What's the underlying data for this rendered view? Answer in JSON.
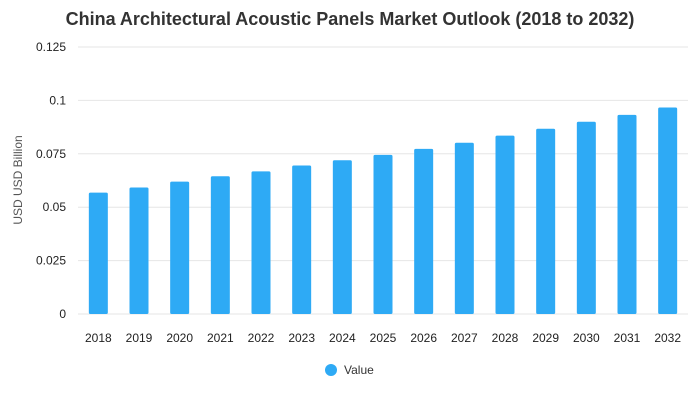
{
  "chart_data": {
    "type": "bar",
    "title": "China Architectural Acoustic Panels Market Outlook (2018 to 2032)",
    "xlabel": "",
    "ylabel": "USD USD Billion",
    "categories": [
      "2018",
      "2019",
      "2020",
      "2021",
      "2022",
      "2023",
      "2024",
      "2025",
      "2026",
      "2027",
      "2028",
      "2029",
      "2030",
      "2031",
      "2032"
    ],
    "series": [
      {
        "name": "Value",
        "color": "#2eaaf5",
        "values": [
          0.0568,
          0.0592,
          0.062,
          0.0645,
          0.0668,
          0.0695,
          0.072,
          0.0745,
          0.0773,
          0.0802,
          0.0835,
          0.0867,
          0.09,
          0.0932,
          0.0967
        ]
      }
    ],
    "yticks": [
      "0",
      "0.025",
      "0.05",
      "0.075",
      "0.1",
      "0.125"
    ],
    "ylim": [
      0,
      0.125
    ],
    "grid": true,
    "legend_position": "bottom-center"
  }
}
